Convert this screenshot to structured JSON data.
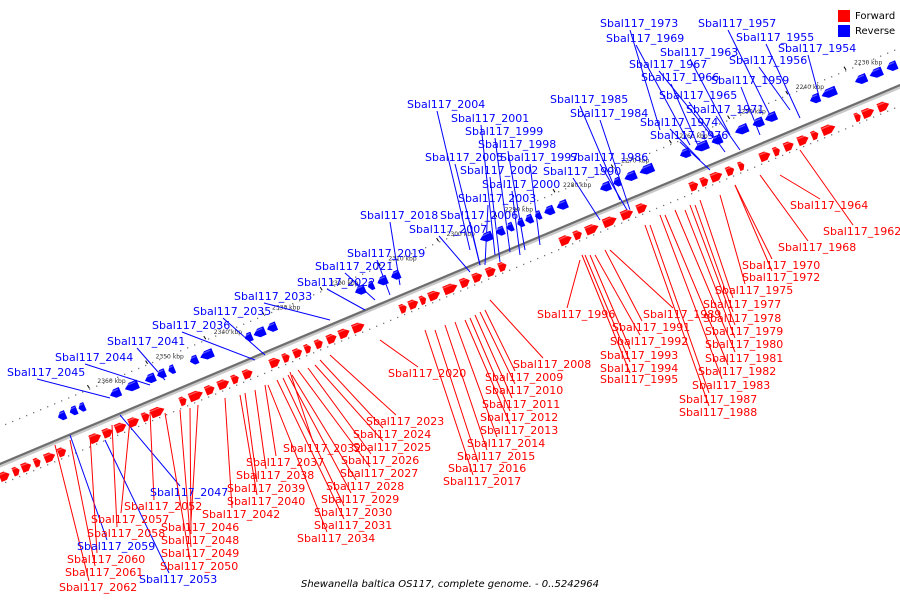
{
  "caption": "Shewanella baltica OS117, complete genome. - 0..5242964",
  "legend": {
    "forward": {
      "label": "Forward",
      "color": "#ff0000"
    },
    "reverse": {
      "label": "Reverse",
      "color": "#0000ff"
    }
  },
  "ticks": [
    "2230 kbp",
    "2240 kbp",
    "2250 kbp",
    "2260 kbp",
    "2270 kbp",
    "2280 kbp",
    "2290 kbp",
    "2300 kbp",
    "2310 kbp",
    "2320 kbp",
    "2330 kbp",
    "2340 kbp",
    "2350 kbp",
    "2360 kbp"
  ],
  "reverse_labels": [
    "Sbal117_1973",
    "Sbal117_1957",
    "Sbal117_1969",
    "Sbal117_1955",
    "Sbal117_1963",
    "Sbal117_1954",
    "Sbal117_1967",
    "Sbal117_1956",
    "Sbal117_1966",
    "Sbal117_1959",
    "Sbal117_1965",
    "Sbal117_1985",
    "Sbal117_1971",
    "Sbal117_2004",
    "Sbal117_1984",
    "Sbal117_1974",
    "Sbal117_2001",
    "Sbal117_1976",
    "Sbal117_1999",
    "Sbal117_1998",
    "Sbal117_2005",
    "Sbal117_1997",
    "Sbal117_1986",
    "Sbal117_2002",
    "Sbal117_1990",
    "Sbal117_2000",
    "Sbal117_2003",
    "Sbal117_2006",
    "Sbal117_2018",
    "Sbal117_2007",
    "Sbal117_2019",
    "Sbal117_2021",
    "Sbal117_2022",
    "Sbal117_2033",
    "Sbal117_2035",
    "Sbal117_2036",
    "Sbal117_2041",
    "Sbal117_2044",
    "Sbal117_2045",
    "Sbal117_2047",
    "Sbal117_2059",
    "Sbal117_2053"
  ],
  "forward_labels": [
    "Sbal117_1964",
    "Sbal117_1962",
    "Sbal117_1968",
    "Sbal117_1970",
    "Sbal117_1972",
    "Sbal117_1975",
    "Sbal117_1977",
    "Sbal117_1978",
    "Sbal117_1979",
    "Sbal117_1980",
    "Sbal117_1981",
    "Sbal117_1982",
    "Sbal117_1983",
    "Sbal117_1987",
    "Sbal117_1988",
    "Sbal117_1996",
    "Sbal117_1989",
    "Sbal117_1991",
    "Sbal117_1992",
    "Sbal117_1993",
    "Sbal117_1994",
    "Sbal117_1995",
    "Sbal117_2008",
    "Sbal117_2020",
    "Sbal117_2009",
    "Sbal117_2010",
    "Sbal117_2011",
    "Sbal117_2012",
    "Sbal117_2013",
    "Sbal117_2014",
    "Sbal117_2015",
    "Sbal117_2016",
    "Sbal117_2017",
    "Sbal117_2023",
    "Sbal117_2024",
    "Sbal117_2025",
    "Sbal117_2026",
    "Sbal117_2027",
    "Sbal117_2028",
    "Sbal117_2029",
    "Sbal117_2030",
    "Sbal117_2031",
    "Sbal117_2034",
    "Sbal117_2032",
    "Sbal117_2037",
    "Sbal117_2038",
    "Sbal117_2039",
    "Sbal117_2040",
    "Sbal117_2042",
    "Sbal117_2046",
    "Sbal117_2048",
    "Sbal117_2049",
    "Sbal117_2050",
    "Sbal117_2052",
    "Sbal117_2057",
    "Sbal117_2058",
    "Sbal117_2060",
    "Sbal117_2061",
    "Sbal117_2062"
  ]
}
